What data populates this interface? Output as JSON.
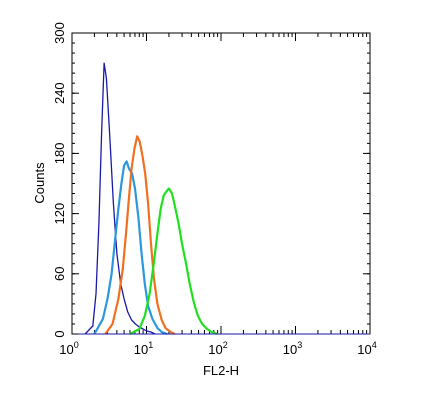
{
  "chart_data": {
    "type": "line",
    "xlabel": "FL2-H",
    "ylabel": "Counts",
    "x_scale": "log",
    "xlim": [
      1,
      10000
    ],
    "ylim": [
      0,
      300
    ],
    "x_ticks": [
      {
        "base": "10",
        "exp": "0"
      },
      {
        "base": "10",
        "exp": "1"
      },
      {
        "base": "10",
        "exp": "2"
      },
      {
        "base": "10",
        "exp": "3"
      },
      {
        "base": "10",
        "exp": "4"
      }
    ],
    "y_ticks": [
      "0",
      "60",
      "120",
      "180",
      "240",
      "300"
    ],
    "grid": false,
    "series": [
      {
        "color": "#1a1aa8",
        "x": [
          1.5,
          1.9,
          2.1,
          2.3,
          2.5,
          2.7,
          2.9,
          3.2,
          3.6,
          4.0,
          4.5,
          5.0,
          5.6,
          6.3,
          7.1,
          8.0,
          9.0,
          10,
          11.5,
          13
        ],
        "y": [
          0,
          8,
          40,
          110,
          200,
          270,
          255,
          200,
          130,
          80,
          50,
          35,
          22,
          14,
          10,
          7,
          5,
          3,
          2,
          0
        ]
      },
      {
        "color": "#2b97dd",
        "x": [
          2.0,
          2.6,
          3.0,
          3.4,
          3.8,
          4.2,
          4.6,
          5.0,
          5.4,
          5.8,
          6.4,
          7.0,
          7.8,
          8.6,
          9.5,
          10.5,
          12,
          14,
          16,
          19
        ],
        "y": [
          0,
          15,
          35,
          60,
          95,
          125,
          150,
          168,
          172,
          165,
          160,
          145,
          115,
          80,
          50,
          28,
          15,
          6,
          2,
          0
        ]
      },
      {
        "color": "#f07020",
        "x": [
          2.8,
          3.5,
          4.2,
          4.8,
          5.3,
          5.8,
          6.3,
          6.9,
          7.5,
          8.1,
          8.8,
          9.6,
          10.5,
          11.5,
          12.6,
          14,
          16,
          18,
          21,
          24
        ],
        "y": [
          0,
          10,
          35,
          65,
          100,
          135,
          165,
          185,
          197,
          192,
          178,
          160,
          130,
          90,
          55,
          30,
          14,
          6,
          2,
          0
        ]
      },
      {
        "color": "#20e020",
        "x": [
          6.0,
          8.0,
          9.5,
          11,
          12.5,
          14,
          15.5,
          17,
          18.5,
          20,
          22,
          24,
          27,
          30,
          34,
          38,
          43,
          49,
          56,
          65,
          75,
          90
        ],
        "y": [
          0,
          5,
          18,
          40,
          70,
          100,
          125,
          138,
          142,
          145,
          140,
          128,
          110,
          90,
          70,
          50,
          32,
          18,
          10,
          5,
          2,
          0
        ]
      }
    ]
  }
}
